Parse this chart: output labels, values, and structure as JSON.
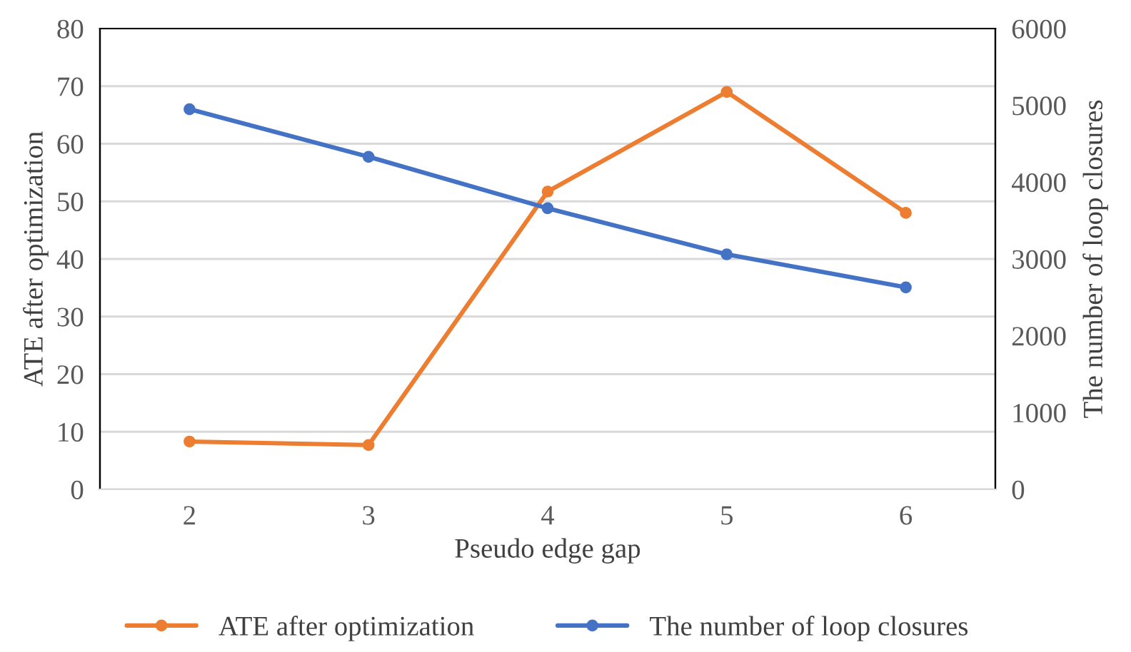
{
  "chart_data": {
    "type": "line",
    "xlabel": "Pseudo edge gap",
    "ylabel": "ATE after optimization",
    "y2label": "The number of loop closures",
    "categories": [
      "2",
      "3",
      "4",
      "5",
      "6"
    ],
    "series": [
      {
        "name": "ATE after optimization",
        "color": "#ed7d31",
        "values": [
          8.3,
          7.7,
          51.7,
          69,
          48
        ]
      },
      {
        "name": "The number of loop closures",
        "color": "#4472c4",
        "axis": "y2",
        "values": [
          4950,
          4330,
          3660,
          3060,
          2630
        ]
      }
    ],
    "ylim": [
      0,
      80
    ],
    "yticks": [
      0,
      10,
      20,
      30,
      40,
      50,
      60,
      70,
      80
    ],
    "y2lim": [
      0,
      6000
    ],
    "y2ticks": [
      0,
      1000,
      2000,
      3000,
      4000,
      5000,
      6000
    ],
    "grid": "y",
    "legend": "bottom",
    "marker": "circle",
    "line_style": "solid"
  }
}
